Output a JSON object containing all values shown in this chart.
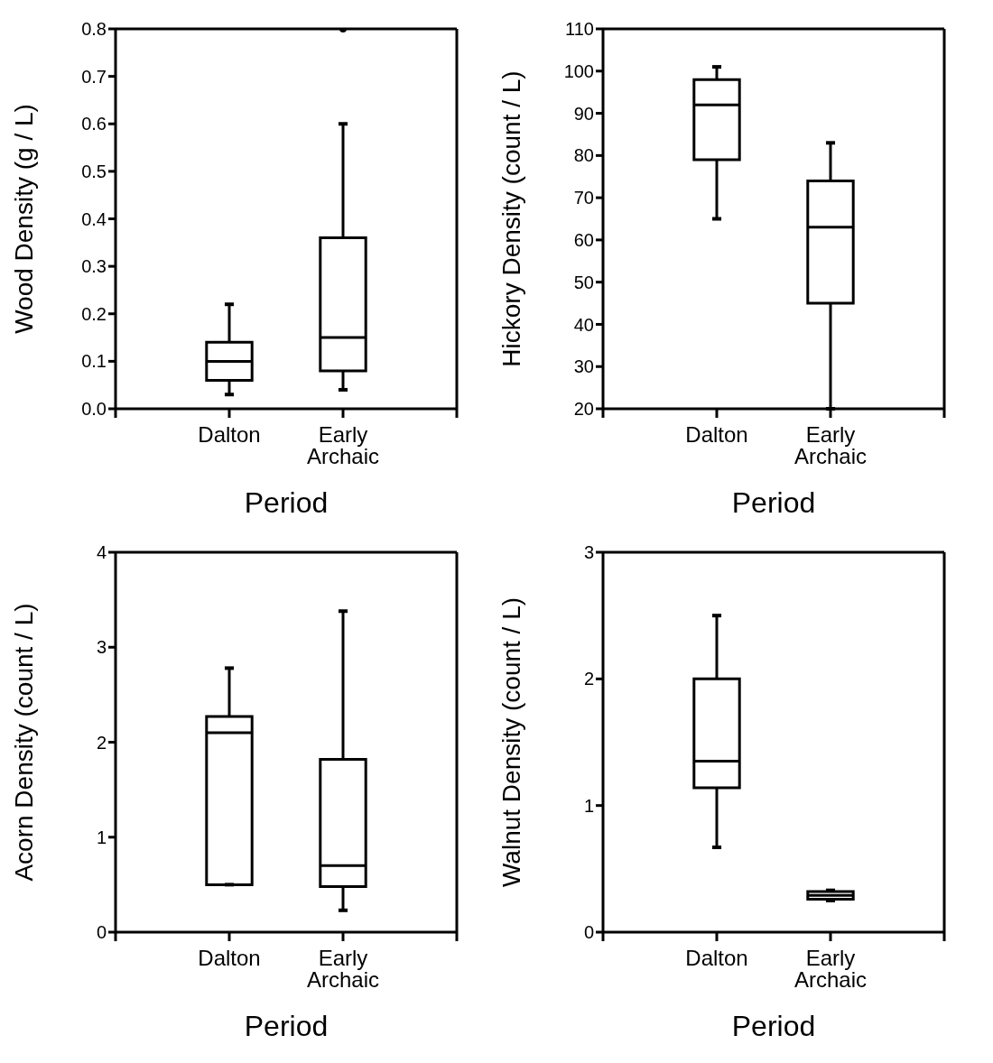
{
  "chart_data": [
    {
      "type": "box",
      "xlabel": "Period",
      "ylabel": "Wood Density (g / L)",
      "categories": [
        "Dalton",
        "Early Archaic"
      ],
      "color": "#000000",
      "ylim": [
        0,
        0.8
      ],
      "yticks": [
        {
          "value": 0,
          "label": "0.0"
        },
        0.1,
        0.2,
        0.3,
        0.4,
        0.5,
        0.6,
        0.7,
        0.8
      ],
      "boxes": [
        {
          "low": 0.03,
          "q1": 0.06,
          "median": 0.1,
          "q3": 0.14,
          "high": 0.22
        },
        {
          "low": 0.04,
          "q1": 0.08,
          "median": 0.15,
          "q3": 0.36,
          "high": 0.6,
          "outliers": [
            0.8
          ]
        }
      ]
    },
    {
      "type": "box",
      "xlabel": "Period",
      "ylabel": "Hickory Density (count / L)",
      "categories": [
        "Dalton",
        "Early Archaic"
      ],
      "color": "#000000",
      "ylim": [
        20,
        110
      ],
      "yticks": [
        20,
        30,
        40,
        50,
        60,
        70,
        80,
        90,
        100,
        110
      ],
      "boxes": [
        {
          "low": 65,
          "q1": 79,
          "median": 92,
          "q3": 98,
          "high": 101
        },
        {
          "low": 20,
          "q1": 45,
          "median": 63,
          "q3": 74,
          "high": 83
        }
      ]
    },
    {
      "type": "box",
      "xlabel": "Period",
      "ylabel": "Acorn Density (count / L)",
      "categories": [
        "Dalton",
        "Early Archaic"
      ],
      "color": "#000000",
      "ylim": [
        0,
        4
      ],
      "yticks": [
        0,
        1,
        2,
        3,
        4
      ],
      "boxes": [
        {
          "low": 0.5,
          "q1": 0.5,
          "median": 2.1,
          "q3": 2.27,
          "high": 2.78
        },
        {
          "low": 0.23,
          "q1": 0.48,
          "median": 0.7,
          "q3": 1.82,
          "high": 3.38
        }
      ]
    },
    {
      "type": "box",
      "xlabel": "Period",
      "ylabel": "Walnut Density (count / L)",
      "categories": [
        "Dalton",
        "Early Archaic"
      ],
      "color": "#000000",
      "ylim": [
        0,
        3
      ],
      "yticks": [
        0,
        1,
        2,
        3
      ],
      "boxes": [
        {
          "low": 0.67,
          "q1": 1.14,
          "median": 1.35,
          "q3": 2.0,
          "high": 2.5
        },
        {
          "low": 0.25,
          "q1": 0.26,
          "median": 0.29,
          "q3": 0.32,
          "high": 0.33
        }
      ]
    }
  ]
}
